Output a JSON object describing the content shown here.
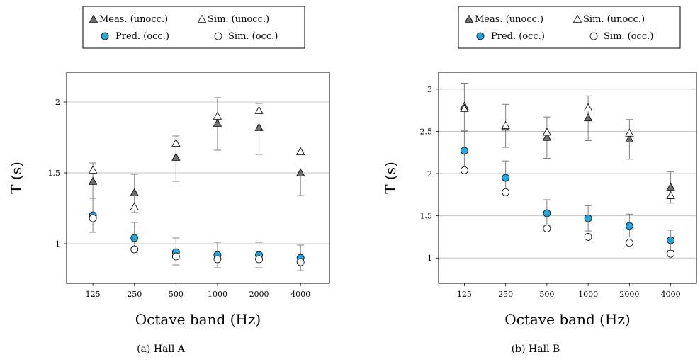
{
  "chart_data": [
    {
      "type": "scatter",
      "caption": "(a) Hall A",
      "xlabel": "Octave band (Hz)",
      "ylabel": "T (s)",
      "categories": [
        "125",
        "250",
        "500",
        "1000",
        "2000",
        "4000"
      ],
      "y_ticks": [
        "1",
        "1.5",
        "2"
      ],
      "ylim": [
        0.72,
        2.21
      ],
      "grid": "horizontal",
      "legend": "top",
      "series": [
        {
          "name": "Meas. (unocc.)",
          "marker": "triangle-filled",
          "values": [
            1.44,
            1.36,
            1.61,
            1.85,
            1.82,
            1.5
          ],
          "error": [
            [
              1.32,
              1.57
            ],
            [
              1.22,
              1.49
            ],
            [
              1.44,
              1.76
            ],
            [
              1.66,
              2.03
            ],
            [
              1.63,
              1.99
            ],
            [
              1.34,
              null
            ]
          ]
        },
        {
          "name": "Sim. (unocc.)",
          "marker": "triangle-open",
          "values": [
            1.52,
            1.26,
            1.71,
            1.9,
            1.94,
            1.65
          ]
        },
        {
          "name": "Pred. (occ.)",
          "marker": "circle-filled",
          "values": [
            1.2,
            1.04,
            0.94,
            0.92,
            0.92,
            0.9
          ],
          "error": [
            [
              1.08,
              1.32
            ],
            [
              0.94,
              1.15
            ],
            [
              0.85,
              1.04
            ],
            [
              0.83,
              1.01
            ],
            [
              0.83,
              1.01
            ],
            [
              0.81,
              0.99
            ]
          ]
        },
        {
          "name": "Sim. (occ.)",
          "marker": "circle-open",
          "values": [
            1.18,
            0.96,
            0.91,
            0.89,
            0.89,
            0.87
          ]
        }
      ]
    },
    {
      "type": "scatter",
      "caption": "(b) Hall B",
      "xlabel": "Octave band (Hz)",
      "ylabel": "T (s)",
      "categories": [
        "125",
        "250",
        "500",
        "1000",
        "2000",
        "4000"
      ],
      "y_ticks": [
        "1",
        "1.5",
        "2",
        "2.5",
        "3"
      ],
      "ylim": [
        0.7,
        3.2
      ],
      "grid": "horizontal",
      "legend": "top",
      "series": [
        {
          "name": "Meas. (unocc.)",
          "marker": "triangle-filled",
          "values": [
            2.8,
            2.55,
            2.43,
            2.66,
            2.41,
            1.84
          ],
          "error": [
            [
              2.51,
              3.07
            ],
            [
              2.31,
              2.82
            ],
            [
              2.18,
              2.67
            ],
            [
              2.39,
              2.92
            ],
            [
              2.17,
              2.64
            ],
            [
              1.65,
              2.02
            ]
          ]
        },
        {
          "name": "Sim. (unocc.)",
          "marker": "triangle-open",
          "values": [
            2.77,
            2.57,
            2.49,
            2.78,
            2.48,
            1.74
          ]
        },
        {
          "name": "Pred. (occ.)",
          "marker": "circle-filled",
          "values": [
            2.27,
            1.95,
            1.53,
            1.47,
            1.38,
            1.21
          ],
          "error": [
            [
              2.05,
              2.5
            ],
            [
              1.76,
              2.15
            ],
            [
              1.38,
              1.69
            ],
            [
              1.32,
              1.62
            ],
            [
              1.25,
              1.52
            ],
            [
              1.09,
              1.33
            ]
          ]
        },
        {
          "name": "Sim. (occ.)",
          "marker": "circle-open",
          "values": [
            2.04,
            1.78,
            1.35,
            1.25,
            1.18,
            1.05
          ]
        }
      ]
    }
  ],
  "colors": {
    "pred_fill": "#1fa9e0",
    "meas_fill": "#707070",
    "grid": "#c4c4c4",
    "errorbar": "#808080"
  }
}
